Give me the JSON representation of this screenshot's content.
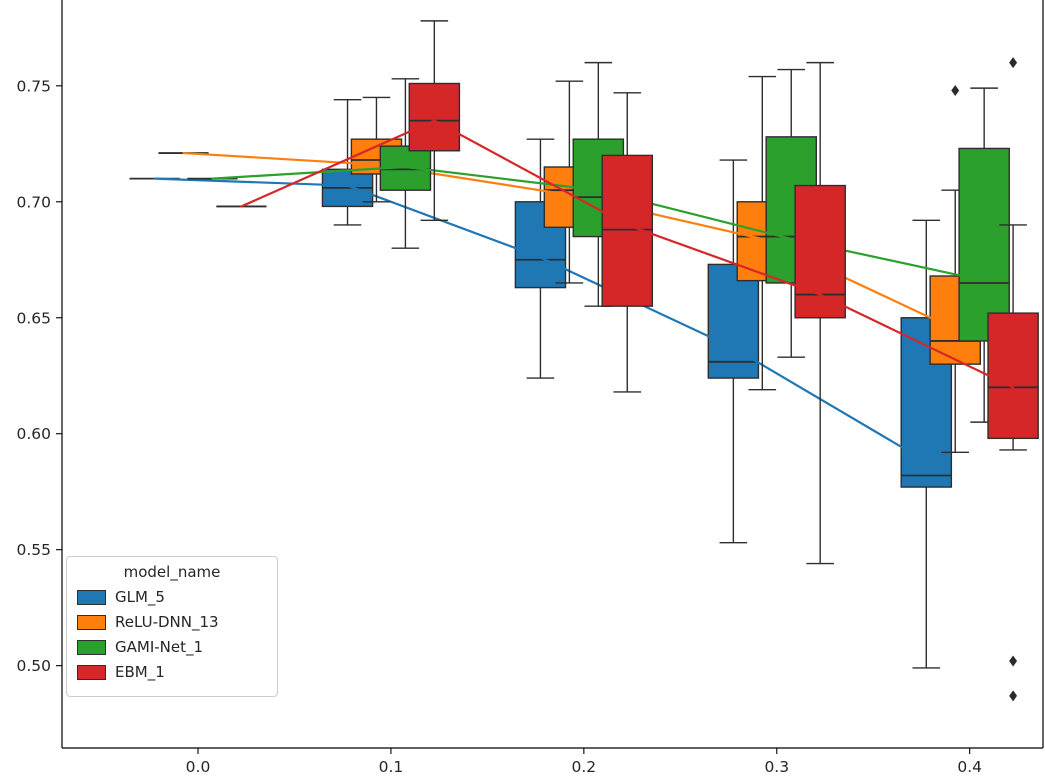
{
  "figure": {
    "background": "#ffffff"
  },
  "chart_data": {
    "type": "boxplot+line",
    "title": "",
    "xlabel": "",
    "ylabel": "",
    "grid": false,
    "x_ticks": {
      "values": [
        0.0,
        0.1,
        0.2,
        0.3,
        0.4
      ],
      "labels": [
        "0.0",
        "0.1",
        "0.2",
        "0.3",
        "0.4"
      ]
    },
    "y_ticks": {
      "values": [
        0.5,
        0.55,
        0.6,
        0.65,
        0.7,
        0.75
      ],
      "labels": [
        "0.50",
        "0.55",
        "0.60",
        "0.65",
        "0.70",
        "0.75"
      ]
    },
    "xlim": [
      -0.0705,
      0.438
    ],
    "ylim": [
      0.4645,
      0.787
    ],
    "dodge_offsets": [
      -0.0225,
      -0.0075,
      0.0075,
      0.0225
    ],
    "box_width": 0.013,
    "edge_color": "#2e2e2e",
    "flier_color": "#2b2b2b",
    "legend": {
      "title": "model_name",
      "position": "lower-left"
    },
    "series": [
      {
        "name": "GLM_5",
        "color": "#1f77b4",
        "line": {
          "x": [
            0.0,
            0.1,
            0.2,
            0.3,
            0.4
          ],
          "y": [
            0.71,
            0.707,
            0.676,
            0.637,
            0.588
          ]
        },
        "boxes": [
          {
            "x": 0.0,
            "low": 0.71,
            "q1": 0.71,
            "median": 0.71,
            "q3": 0.71,
            "high": 0.71,
            "outliers": []
          },
          {
            "x": 0.1,
            "low": 0.69,
            "q1": 0.698,
            "median": 0.706,
            "q3": 0.714,
            "high": 0.744,
            "outliers": []
          },
          {
            "x": 0.2,
            "low": 0.624,
            "q1": 0.663,
            "median": 0.675,
            "q3": 0.7,
            "high": 0.727,
            "outliers": []
          },
          {
            "x": 0.3,
            "low": 0.553,
            "q1": 0.624,
            "median": 0.631,
            "q3": 0.673,
            "high": 0.718,
            "outliers": []
          },
          {
            "x": 0.4,
            "low": 0.499,
            "q1": 0.577,
            "median": 0.582,
            "q3": 0.65,
            "high": 0.692,
            "outliers": []
          }
        ]
      },
      {
        "name": "ReLU-DNN_13",
        "color": "#ff7f0e",
        "line": {
          "x": [
            0.0,
            0.1,
            0.2,
            0.3,
            0.4
          ],
          "y": [
            0.721,
            0.716,
            0.703,
            0.684,
            0.645
          ]
        },
        "boxes": [
          {
            "x": 0.0,
            "low": 0.721,
            "q1": 0.721,
            "median": 0.721,
            "q3": 0.721,
            "high": 0.721,
            "outliers": []
          },
          {
            "x": 0.1,
            "low": 0.7,
            "q1": 0.712,
            "median": 0.718,
            "q3": 0.727,
            "high": 0.745,
            "outliers": []
          },
          {
            "x": 0.2,
            "low": 0.665,
            "q1": 0.689,
            "median": 0.705,
            "q3": 0.715,
            "high": 0.752,
            "outliers": []
          },
          {
            "x": 0.3,
            "low": 0.619,
            "q1": 0.666,
            "median": 0.685,
            "q3": 0.7,
            "high": 0.754,
            "outliers": []
          },
          {
            "x": 0.4,
            "low": 0.592,
            "q1": 0.63,
            "median": 0.64,
            "q3": 0.668,
            "high": 0.705,
            "outliers": [
              0.748
            ]
          }
        ]
      },
      {
        "name": "GAMI-Net_1",
        "color": "#2ca02c",
        "line": {
          "x": [
            0.0,
            0.1,
            0.2,
            0.3,
            0.4
          ],
          "y": [
            0.71,
            0.715,
            0.705,
            0.684,
            0.666
          ]
        },
        "boxes": [
          {
            "x": 0.0,
            "low": 0.71,
            "q1": 0.71,
            "median": 0.71,
            "q3": 0.71,
            "high": 0.71,
            "outliers": []
          },
          {
            "x": 0.1,
            "low": 0.68,
            "q1": 0.705,
            "median": 0.714,
            "q3": 0.724,
            "high": 0.753,
            "outliers": []
          },
          {
            "x": 0.2,
            "low": 0.655,
            "q1": 0.685,
            "median": 0.702,
            "q3": 0.727,
            "high": 0.76,
            "outliers": []
          },
          {
            "x": 0.3,
            "low": 0.633,
            "q1": 0.665,
            "median": 0.685,
            "q3": 0.728,
            "high": 0.757,
            "outliers": []
          },
          {
            "x": 0.4,
            "low": 0.605,
            "q1": 0.64,
            "median": 0.665,
            "q3": 0.723,
            "high": 0.749,
            "outliers": []
          }
        ]
      },
      {
        "name": "EBM_1",
        "color": "#d62728",
        "line": {
          "x": [
            0.0,
            0.1,
            0.2,
            0.3,
            0.4
          ],
          "y": [
            0.698,
            0.735,
            0.69,
            0.66,
            0.62
          ]
        },
        "boxes": [
          {
            "x": 0.0,
            "low": 0.698,
            "q1": 0.698,
            "median": 0.698,
            "q3": 0.698,
            "high": 0.698,
            "outliers": []
          },
          {
            "x": 0.1,
            "low": 0.692,
            "q1": 0.722,
            "median": 0.735,
            "q3": 0.751,
            "high": 0.778,
            "outliers": []
          },
          {
            "x": 0.2,
            "low": 0.618,
            "q1": 0.655,
            "median": 0.688,
            "q3": 0.72,
            "high": 0.747,
            "outliers": []
          },
          {
            "x": 0.3,
            "low": 0.544,
            "q1": 0.65,
            "median": 0.66,
            "q3": 0.707,
            "high": 0.76,
            "outliers": []
          },
          {
            "x": 0.4,
            "low": 0.593,
            "q1": 0.598,
            "median": 0.62,
            "q3": 0.652,
            "high": 0.69,
            "outliers": [
              0.76,
              0.502,
              0.487
            ]
          }
        ]
      }
    ]
  }
}
